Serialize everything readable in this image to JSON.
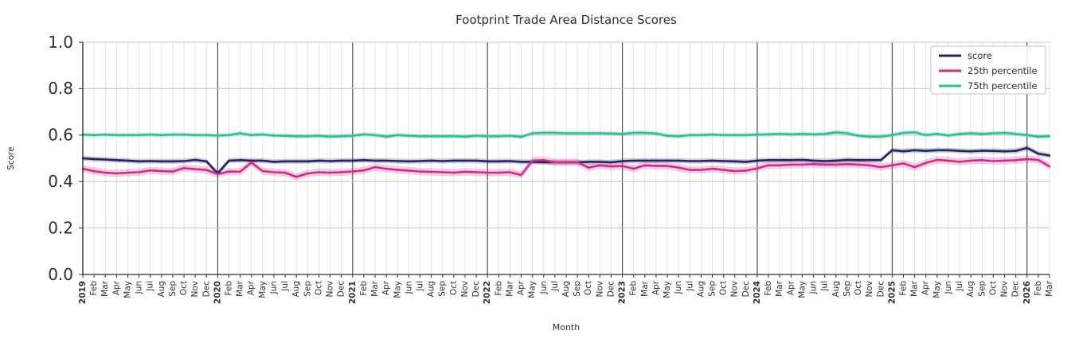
{
  "page": {
    "background": "#ffffff"
  },
  "chart_data": {
    "type": "line",
    "title": "Footprint Trade Area Distance Scores",
    "xlabel": "Month",
    "ylabel": "Score",
    "ylim": [
      0.0,
      1.0
    ],
    "yticks": [
      0.0,
      0.2,
      0.4,
      0.6,
      0.8,
      1.0
    ],
    "ytick_labels": [
      "0.0",
      "0.2",
      "0.4",
      "0.6",
      "0.8",
      "1.0"
    ],
    "grid": true,
    "year_boundary_indices": [
      0,
      12,
      24,
      36,
      48,
      60,
      72,
      84
    ],
    "x_labels": [
      "2019",
      "Feb",
      "Mar",
      "Apr",
      "May",
      "Jun",
      "Jul",
      "Aug",
      "Sep",
      "Oct",
      "Nov",
      "Dec",
      "2020",
      "Feb",
      "Mar",
      "Apr",
      "May",
      "Jun",
      "Jul",
      "Aug",
      "Sep",
      "Oct",
      "Nov",
      "Dec",
      "2021",
      "Feb",
      "Mar",
      "Apr",
      "May",
      "Jun",
      "Jul",
      "Aug",
      "Sep",
      "Oct",
      "Nov",
      "Dec",
      "2022",
      "Feb",
      "Mar",
      "Apr",
      "May",
      "Jun",
      "Jul",
      "Aug",
      "Sep",
      "Oct",
      "Nov",
      "Dec",
      "2023",
      "Feb",
      "Mar",
      "Apr",
      "May",
      "Jun",
      "Jul",
      "Aug",
      "Sep",
      "Oct",
      "Nov",
      "Dec",
      "2024",
      "Feb",
      "Mar",
      "Apr",
      "May",
      "Jun",
      "Jul",
      "Aug",
      "Sep",
      "Oct",
      "Nov",
      "Dec",
      "2025",
      "Feb",
      "Mar",
      "Apr",
      "May",
      "Jun",
      "Jul",
      "Aug",
      "Sep",
      "Oct",
      "Nov",
      "Dec",
      "2026",
      "Feb",
      "Mar"
    ],
    "legend": {
      "position": "upper right",
      "entries": [
        "score",
        "25th percentile",
        "75th percentile"
      ]
    },
    "series": [
      {
        "name": "score",
        "color": "#22265e",
        "band_halfwidth": 0.011,
        "values": [
          0.5,
          0.497,
          0.495,
          0.492,
          0.49,
          0.487,
          0.488,
          0.487,
          0.487,
          0.488,
          0.493,
          0.487,
          0.435,
          0.49,
          0.492,
          0.49,
          0.49,
          0.485,
          0.487,
          0.487,
          0.487,
          0.49,
          0.488,
          0.49,
          0.49,
          0.492,
          0.49,
          0.49,
          0.488,
          0.487,
          0.488,
          0.49,
          0.488,
          0.49,
          0.49,
          0.49,
          0.487,
          0.487,
          0.488,
          0.485,
          0.485,
          0.483,
          0.483,
          0.483,
          0.483,
          0.485,
          0.485,
          0.483,
          0.488,
          0.49,
          0.49,
          0.49,
          0.49,
          0.49,
          0.488,
          0.488,
          0.49,
          0.488,
          0.487,
          0.485,
          0.49,
          0.492,
          0.492,
          0.492,
          0.493,
          0.49,
          0.488,
          0.49,
          0.493,
          0.492,
          0.492,
          0.492,
          0.535,
          0.53,
          0.535,
          0.532,
          0.535,
          0.535,
          0.532,
          0.53,
          0.533,
          0.532,
          0.53,
          0.532,
          0.545,
          0.52,
          0.512
        ]
      },
      {
        "name": "25th percentile",
        "color": "#d12b8a",
        "band_halfwidth": 0.016,
        "values": [
          0.455,
          0.445,
          0.438,
          0.435,
          0.438,
          0.44,
          0.448,
          0.445,
          0.443,
          0.458,
          0.453,
          0.45,
          0.432,
          0.443,
          0.442,
          0.482,
          0.445,
          0.44,
          0.438,
          0.42,
          0.435,
          0.44,
          0.438,
          0.44,
          0.443,
          0.448,
          0.462,
          0.455,
          0.45,
          0.447,
          0.443,
          0.442,
          0.44,
          0.438,
          0.442,
          0.44,
          0.438,
          0.438,
          0.44,
          0.428,
          0.49,
          0.492,
          0.483,
          0.483,
          0.483,
          0.46,
          0.47,
          0.465,
          0.467,
          0.455,
          0.47,
          0.467,
          0.467,
          0.46,
          0.45,
          0.45,
          0.455,
          0.45,
          0.445,
          0.447,
          0.457,
          0.47,
          0.47,
          0.473,
          0.473,
          0.475,
          0.473,
          0.473,
          0.475,
          0.473,
          0.47,
          0.462,
          0.47,
          0.478,
          0.462,
          0.48,
          0.493,
          0.49,
          0.485,
          0.49,
          0.492,
          0.488,
          0.49,
          0.492,
          0.497,
          0.493,
          0.465
        ]
      },
      {
        "name": "75th percentile",
        "color": "#2fbf95",
        "band_halfwidth": 0.01,
        "values": [
          0.602,
          0.6,
          0.602,
          0.6,
          0.6,
          0.6,
          0.602,
          0.6,
          0.602,
          0.602,
          0.6,
          0.6,
          0.598,
          0.6,
          0.608,
          0.6,
          0.603,
          0.598,
          0.597,
          0.595,
          0.595,
          0.597,
          0.593,
          0.595,
          0.597,
          0.603,
          0.6,
          0.593,
          0.6,
          0.597,
          0.595,
          0.595,
          0.595,
          0.595,
          0.593,
          0.597,
          0.595,
          0.595,
          0.597,
          0.592,
          0.608,
          0.61,
          0.61,
          0.608,
          0.608,
          0.608,
          0.608,
          0.607,
          0.605,
          0.61,
          0.61,
          0.607,
          0.597,
          0.595,
          0.6,
          0.6,
          0.602,
          0.6,
          0.6,
          0.6,
          0.602,
          0.603,
          0.605,
          0.603,
          0.605,
          0.603,
          0.605,
          0.612,
          0.608,
          0.597,
          0.593,
          0.593,
          0.6,
          0.61,
          0.612,
          0.6,
          0.605,
          0.598,
          0.605,
          0.608,
          0.605,
          0.608,
          0.61,
          0.605,
          0.6,
          0.593,
          0.595
        ]
      }
    ],
    "style": {
      "grid_color_minor": "#dcdcdc",
      "grid_color_major": "#c9c9c9",
      "year_line_color": "#3f3f3f",
      "spine_color": "#2e2e2e",
      "band_opacity": 0.22,
      "legend_border_color": "#cccccc"
    }
  }
}
